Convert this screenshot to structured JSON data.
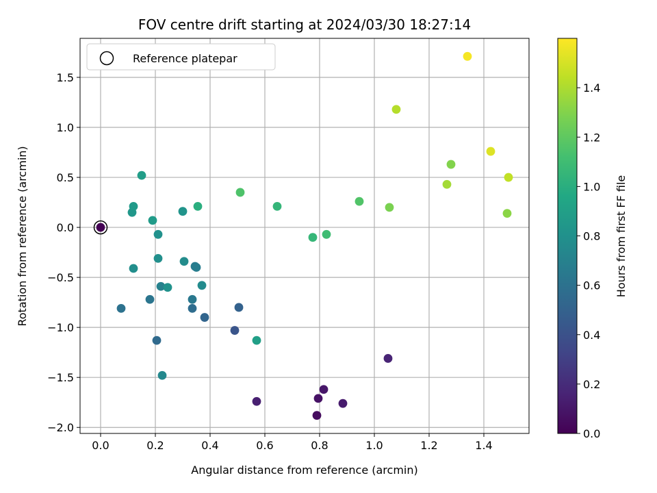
{
  "chart_data": {
    "type": "scatter",
    "title": "FOV centre drift starting at 2024/03/30 18:27:14",
    "xlabel": "Angular distance from reference (arcmin)",
    "ylabel": "Rotation from reference (arcmin)",
    "xlim": [
      -0.075,
      1.565
    ],
    "ylim": [
      -2.06,
      1.89
    ],
    "xticks": [
      0.0,
      0.2,
      0.4,
      0.6,
      0.8,
      1.0,
      1.2,
      1.4
    ],
    "xtick_labels": [
      "0.0",
      "0.2",
      "0.4",
      "0.6",
      "0.8",
      "1.0",
      "1.2",
      "1.4"
    ],
    "yticks": [
      -2.0,
      -1.5,
      -1.0,
      -0.5,
      0.0,
      0.5,
      1.0,
      1.5
    ],
    "ytick_labels": [
      "−2.0",
      "−1.5",
      "−1.0",
      "−0.5",
      "0.0",
      "0.5",
      "1.0",
      "1.5"
    ],
    "grid": true,
    "legend": {
      "position": "upper-left",
      "entries": [
        "Reference platepar"
      ]
    },
    "reference_point": {
      "x": 0.0,
      "y": 0.0
    },
    "colorbar": {
      "label": "Hours from first FF file",
      "colormap": "viridis",
      "range": [
        0.0,
        1.6
      ],
      "ticks": [
        0.0,
        0.2,
        0.4,
        0.6,
        0.8,
        1.0,
        1.2,
        1.4
      ],
      "tick_labels": [
        "0.0",
        "0.2",
        "0.4",
        "0.6",
        "0.8",
        "1.0",
        "1.2",
        "1.4"
      ]
    },
    "points": [
      {
        "x": 0.0,
        "y": 0.0,
        "c": 0.0
      },
      {
        "x": 0.79,
        "y": -1.88,
        "c": 0.05
      },
      {
        "x": 0.795,
        "y": -1.71,
        "c": 0.08
      },
      {
        "x": 0.815,
        "y": -1.62,
        "c": 0.1
      },
      {
        "x": 0.885,
        "y": -1.76,
        "c": 0.12
      },
      {
        "x": 0.57,
        "y": -1.74,
        "c": 0.14
      },
      {
        "x": 1.05,
        "y": -1.31,
        "c": 0.16
      },
      {
        "x": 0.49,
        "y": -1.03,
        "c": 0.42
      },
      {
        "x": 0.505,
        "y": -0.8,
        "c": 0.5
      },
      {
        "x": 0.38,
        "y": -0.9,
        "c": 0.52
      },
      {
        "x": 0.205,
        "y": -1.13,
        "c": 0.55
      },
      {
        "x": 0.335,
        "y": -0.81,
        "c": 0.57
      },
      {
        "x": 0.075,
        "y": -0.81,
        "c": 0.6
      },
      {
        "x": 0.18,
        "y": -0.72,
        "c": 0.62
      },
      {
        "x": 0.335,
        "y": -0.72,
        "c": 0.64
      },
      {
        "x": 0.345,
        "y": -0.39,
        "c": 0.66
      },
      {
        "x": 0.35,
        "y": -0.4,
        "c": 0.67
      },
      {
        "x": 0.22,
        "y": -0.59,
        "c": 0.7
      },
      {
        "x": 0.225,
        "y": -1.48,
        "c": 0.74
      },
      {
        "x": 0.37,
        "y": -0.58,
        "c": 0.76
      },
      {
        "x": 0.305,
        "y": -0.34,
        "c": 0.77
      },
      {
        "x": 0.12,
        "y": -0.41,
        "c": 0.78
      },
      {
        "x": 0.21,
        "y": -0.31,
        "c": 0.79
      },
      {
        "x": 0.21,
        "y": -0.07,
        "c": 0.8
      },
      {
        "x": 0.245,
        "y": -0.6,
        "c": 0.81
      },
      {
        "x": 0.3,
        "y": 0.16,
        "c": 0.82
      },
      {
        "x": 0.115,
        "y": 0.15,
        "c": 0.84
      },
      {
        "x": 0.12,
        "y": 0.21,
        "c": 0.86
      },
      {
        "x": 0.19,
        "y": 0.07,
        "c": 0.87
      },
      {
        "x": 0.15,
        "y": 0.52,
        "c": 0.88
      },
      {
        "x": 0.57,
        "y": -1.13,
        "c": 0.9
      },
      {
        "x": 0.355,
        "y": 0.21,
        "c": 1.0
      },
      {
        "x": 0.645,
        "y": 0.21,
        "c": 1.05
      },
      {
        "x": 0.775,
        "y": -0.1,
        "c": 1.06
      },
      {
        "x": 0.825,
        "y": -0.07,
        "c": 1.1
      },
      {
        "x": 0.51,
        "y": 0.35,
        "c": 1.15
      },
      {
        "x": 0.945,
        "y": 0.26,
        "c": 1.16
      },
      {
        "x": 1.055,
        "y": 0.2,
        "c": 1.28
      },
      {
        "x": 1.28,
        "y": 0.63,
        "c": 1.3
      },
      {
        "x": 1.485,
        "y": 0.14,
        "c": 1.32
      },
      {
        "x": 1.265,
        "y": 0.43,
        "c": 1.38
      },
      {
        "x": 1.08,
        "y": 1.18,
        "c": 1.42
      },
      {
        "x": 1.49,
        "y": 0.5,
        "c": 1.45
      },
      {
        "x": 1.425,
        "y": 0.76,
        "c": 1.52
      },
      {
        "x": 1.34,
        "y": 1.71,
        "c": 1.58
      }
    ]
  }
}
